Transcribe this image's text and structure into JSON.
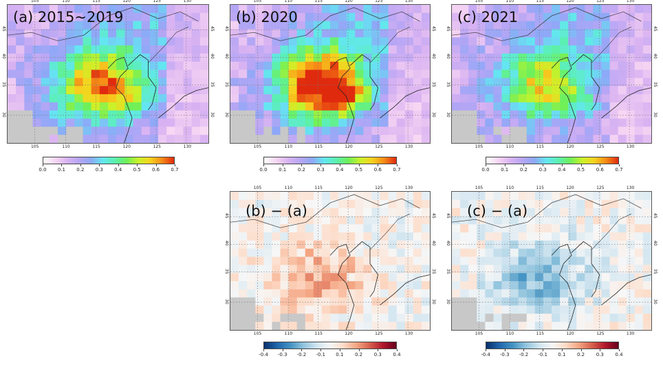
{
  "figure": {
    "panels": [
      {
        "id": "a",
        "label": "(a) 2015~2019",
        "kind": "abs",
        "intensity": 0.62
      },
      {
        "id": "b",
        "label": "(b) 2020",
        "kind": "abs",
        "intensity": 0.78
      },
      {
        "id": "c",
        "label": "(c) 2021",
        "kind": "abs",
        "intensity": 0.5
      },
      {
        "id": "ba",
        "label": "(b) − (a)",
        "kind": "diff",
        "bias": 0.35
      },
      {
        "id": "ca",
        "label": "(c) − (a)",
        "kind": "diff",
        "bias": -0.45
      }
    ],
    "lon_ticks": [
      "105",
      "110",
      "115",
      "120",
      "125",
      "130"
    ],
    "lat_ticks": [
      "30",
      "35",
      "40",
      "45"
    ],
    "colorbar_abs": {
      "ticks": [
        "0.0",
        "0.1",
        "0.2",
        "0.3",
        "0.4",
        "0.5",
        "0.6",
        "0.7"
      ],
      "colors": [
        "#ffffff",
        "#f7d6f3",
        "#d9b3f2",
        "#b7a6f5",
        "#8ea8f7",
        "#64e6f2",
        "#5bf0b0",
        "#6ef05a",
        "#c9f22a",
        "#f7d21f",
        "#f78a16",
        "#e02a0e"
      ]
    },
    "colorbar_diff": {
      "ticks": [
        "-0.4",
        "-0.3",
        "-0.2",
        "-0.1",
        "0.1",
        "0.2",
        "0.3",
        "0.4"
      ],
      "colors": [
        "#08306b",
        "#2166ac",
        "#4393c3",
        "#92c5de",
        "#d1e5f0",
        "#f7f7f7",
        "#fddbc7",
        "#f4a582",
        "#d6604d",
        "#b2182b",
        "#67001f"
      ]
    }
  }
}
